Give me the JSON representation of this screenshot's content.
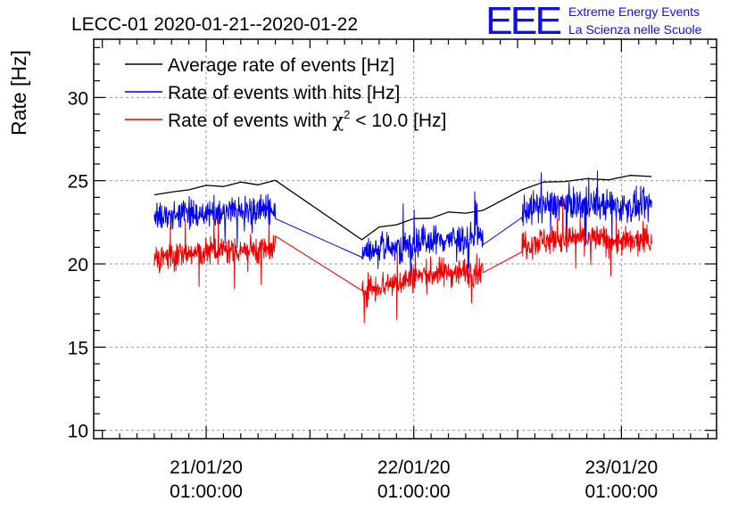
{
  "logo": {
    "mark": "EEE",
    "line1": "Extreme Energy Events",
    "line2": "La Scienza nelle Scuole"
  },
  "chart_data": {
    "type": "line",
    "title": "LECC-01 2020-01-21--2020-01-22",
    "ylabel": "Rate [Hz]",
    "xlabel": "",
    "ylim": [
      9.5,
      33.5
    ],
    "yticks": [
      10,
      15,
      20,
      25,
      30
    ],
    "xticks": [
      {
        "line1": "21/01/20",
        "line2": "01:00:00"
      },
      {
        "line1": "22/01/20",
        "line2": "01:00:00"
      },
      {
        "line1": "23/01/20",
        "line2": "01:00:00"
      }
    ],
    "grid": true,
    "legend_position": "top-left",
    "legend": [
      {
        "label": "Average rate of events [Hz]",
        "color": "#000000",
        "pre": "Average rate of events [Hz]",
        "sym": "",
        "sup": "",
        "post": ""
      },
      {
        "label": "Rate of events with hits [Hz]",
        "color": "#0000ee",
        "pre": "Rate of events with hits [Hz]",
        "sym": "",
        "sup": "",
        "post": ""
      },
      {
        "label": "Rate of events with χ2 < 10.0 [Hz]",
        "color": "#ee0000",
        "pre": "Rate of events with ",
        "sym": "χ",
        "sup": "2",
        "post": " < 10.0 [Hz]"
      }
    ],
    "x_unit": "hours since 2020-01-21 00:00",
    "segments": [
      {
        "x_start": -5.0,
        "x_end": 9.0
      },
      {
        "x_start": 19.0,
        "x_end": 33.0
      },
      {
        "x_start": 37.5,
        "x_end": 52.5
      }
    ],
    "series": [
      {
        "name": "Average rate of events [Hz]",
        "color": "#000000",
        "style": "smooth",
        "points": [
          [
            -5.0,
            24.2
          ],
          [
            -3.0,
            24.2
          ],
          [
            -1.0,
            24.5
          ],
          [
            1.0,
            24.6
          ],
          [
            3.0,
            24.7
          ],
          [
            5.0,
            24.8
          ],
          [
            7.0,
            24.8
          ],
          [
            9.0,
            24.9
          ],
          [
            19.0,
            21.5
          ],
          [
            21.0,
            22.1
          ],
          [
            23.0,
            22.4
          ],
          [
            25.0,
            22.6
          ],
          [
            27.0,
            22.8
          ],
          [
            29.0,
            23.0
          ],
          [
            31.0,
            23.1
          ],
          [
            33.0,
            23.1
          ],
          [
            37.5,
            24.5
          ],
          [
            40.0,
            24.8
          ],
          [
            42.5,
            25.0
          ],
          [
            45.0,
            25.0
          ],
          [
            47.5,
            25.1
          ],
          [
            50.0,
            25.2
          ],
          [
            52.5,
            25.3
          ]
        ]
      },
      {
        "name": "Rate of events with hits [Hz]",
        "color": "#0000ee",
        "style": "noisy",
        "noise": 0.9,
        "points": [
          [
            -5.0,
            22.8
          ],
          [
            -3.0,
            22.9
          ],
          [
            -1.0,
            23.0
          ],
          [
            1.0,
            23.1
          ],
          [
            3.0,
            23.1
          ],
          [
            5.0,
            23.2
          ],
          [
            7.0,
            23.3
          ],
          [
            9.0,
            23.2
          ],
          [
            19.0,
            20.5
          ],
          [
            21.0,
            20.9
          ],
          [
            23.0,
            21.0
          ],
          [
            25.0,
            21.2
          ],
          [
            27.0,
            21.4
          ],
          [
            29.0,
            21.5
          ],
          [
            31.0,
            21.5
          ],
          [
            33.0,
            21.6
          ],
          [
            37.5,
            23.2
          ],
          [
            40.0,
            23.5
          ],
          [
            42.5,
            23.6
          ],
          [
            45.0,
            23.6
          ],
          [
            47.5,
            23.5
          ],
          [
            50.0,
            23.4
          ],
          [
            52.5,
            23.5
          ]
        ]
      },
      {
        "name": "Rate of events with χ2 < 10.0 [Hz]",
        "color": "#ee0000",
        "style": "noisy",
        "noise": 0.85,
        "points": [
          [
            -5.0,
            20.4
          ],
          [
            -3.0,
            20.5
          ],
          [
            -1.0,
            20.6
          ],
          [
            1.0,
            20.7
          ],
          [
            3.0,
            20.8
          ],
          [
            5.0,
            20.9
          ],
          [
            7.0,
            20.9
          ],
          [
            9.0,
            20.8
          ],
          [
            19.0,
            18.4
          ],
          [
            21.0,
            18.7
          ],
          [
            23.0,
            18.9
          ],
          [
            25.0,
            19.2
          ],
          [
            27.0,
            19.4
          ],
          [
            29.0,
            19.5
          ],
          [
            31.0,
            19.5
          ],
          [
            33.0,
            19.6
          ],
          [
            37.5,
            21.2
          ],
          [
            40.0,
            21.4
          ],
          [
            42.5,
            21.5
          ],
          [
            45.0,
            21.6
          ],
          [
            47.5,
            21.4
          ],
          [
            50.0,
            21.3
          ],
          [
            52.5,
            21.4
          ]
        ]
      }
    ]
  }
}
